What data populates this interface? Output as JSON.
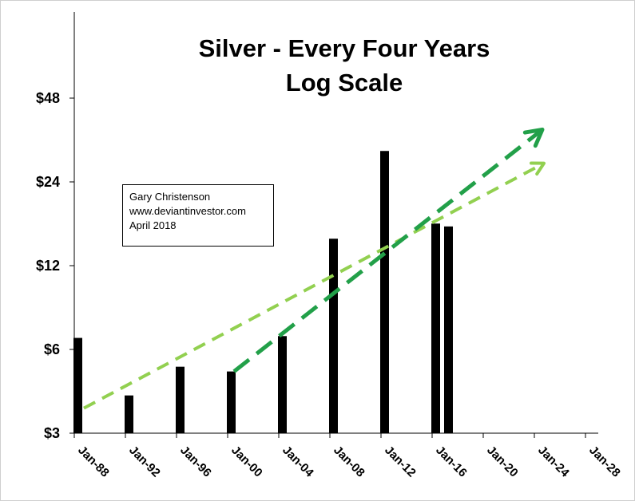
{
  "chart_data": {
    "type": "bar",
    "title": "Silver - Every Four Years",
    "subtitle": "Log Scale",
    "y_scale": "log2",
    "ylim": [
      3,
      96
    ],
    "yticks": [
      3,
      6,
      12,
      24,
      48
    ],
    "ytick_labels": [
      "$3",
      "$6",
      "$12",
      "$24",
      "$48"
    ],
    "xticks": [
      "Jan-88",
      "Jan-92",
      "Jan-96",
      "Jan-00",
      "Jan-04",
      "Jan-08",
      "Jan-12",
      "Jan-16",
      "Jan-20",
      "Jan-24",
      "Jan-28"
    ],
    "bars": [
      {
        "x": "Jan-88",
        "value": 6.6
      },
      {
        "x": "Jan-92",
        "value": 4.1
      },
      {
        "x": "Jan-96",
        "value": 5.2
      },
      {
        "x": "Jan-00",
        "value": 5.0
      },
      {
        "x": "Jan-04",
        "value": 6.7
      },
      {
        "x": "Jan-08",
        "value": 15.0
      },
      {
        "x": "Jan-12",
        "value": 31.0
      },
      {
        "x": "Jan-16",
        "value": 17.0
      },
      {
        "x": "Jan-17",
        "value": 16.6
      }
    ],
    "trend_lines": [
      {
        "from": {
          "x": "Jan-88",
          "value": 3.5
        },
        "to": {
          "x": "Jan-24",
          "value": 28
        },
        "color": "#92d050",
        "style": "dashed",
        "arrow": true
      },
      {
        "from": {
          "x": "Jan-00",
          "value": 5.0
        },
        "to": {
          "x": "Jan-24",
          "value": 37
        },
        "color": "#22a049",
        "style": "dashed",
        "arrow": true
      }
    ],
    "grid": false,
    "legend": "none"
  },
  "annotation": {
    "lines": [
      "Gary Christenson",
      "www.deviantinvestor.com",
      "April 2018"
    ]
  },
  "colors": {
    "bar": "#000000",
    "axis": "#000000",
    "trend_light": "#92d050",
    "trend_dark": "#22a049"
  }
}
